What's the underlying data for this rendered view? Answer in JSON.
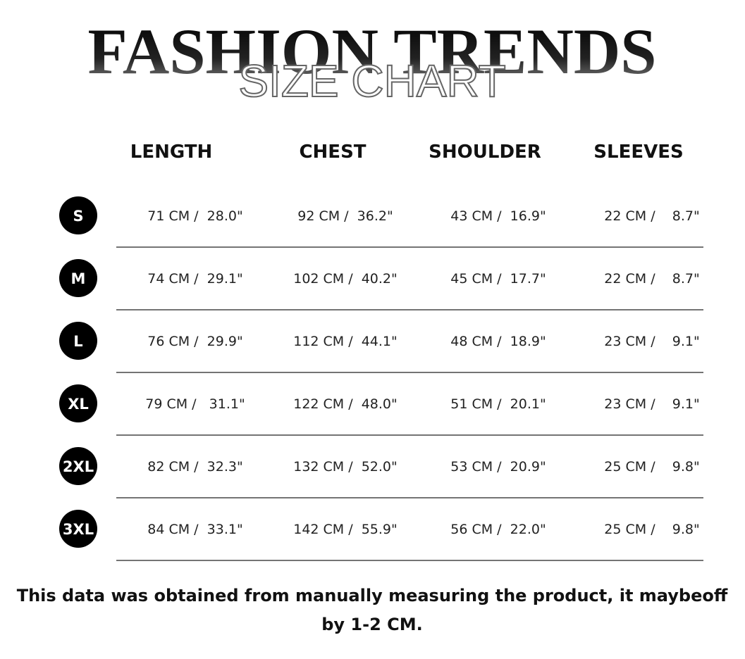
{
  "header": {
    "title": "FASHION TRENDS",
    "subtitle": "SIZE CHART"
  },
  "table": {
    "columns": [
      "LENGTH",
      "CHEST",
      "SHOULDER",
      "SLEEVES"
    ],
    "rows": [
      {
        "size": "S",
        "cells": [
          "71 CM /  28.0\"",
          "92 CM /  36.2\"",
          "43 CM /  16.9\"",
          "22 CM /    8.7\""
        ]
      },
      {
        "size": "M",
        "cells": [
          "74 CM /  29.1\"",
          "102 CM /  40.2\"",
          "45 CM /  17.7\"",
          "22 CM /    8.7\""
        ]
      },
      {
        "size": "L",
        "cells": [
          "76 CM /  29.9\"",
          "112 CM /  44.1\"",
          "48 CM /  18.9\"",
          "23 CM /    9.1\""
        ]
      },
      {
        "size": "XL",
        "cells": [
          "79 CM /   31.1\"",
          "122 CM /  48.0\"",
          "51 CM /  20.1\"",
          "23 CM /    9.1\""
        ]
      },
      {
        "size": "2XL",
        "cells": [
          "82 CM /  32.3\"",
          "132 CM /  52.0\"",
          "53 CM /  20.9\"",
          "25 CM /    9.8\""
        ]
      },
      {
        "size": "3XL",
        "cells": [
          "84 CM /  33.1\"",
          "142 CM /  55.9\"",
          "56 CM /  22.0\"",
          "25 CM /    9.8\""
        ]
      }
    ]
  },
  "footnote": {
    "lines": [
      "This data was obtained from manually measuring the product, it maybeoff",
      "by 1-2 CM."
    ]
  }
}
